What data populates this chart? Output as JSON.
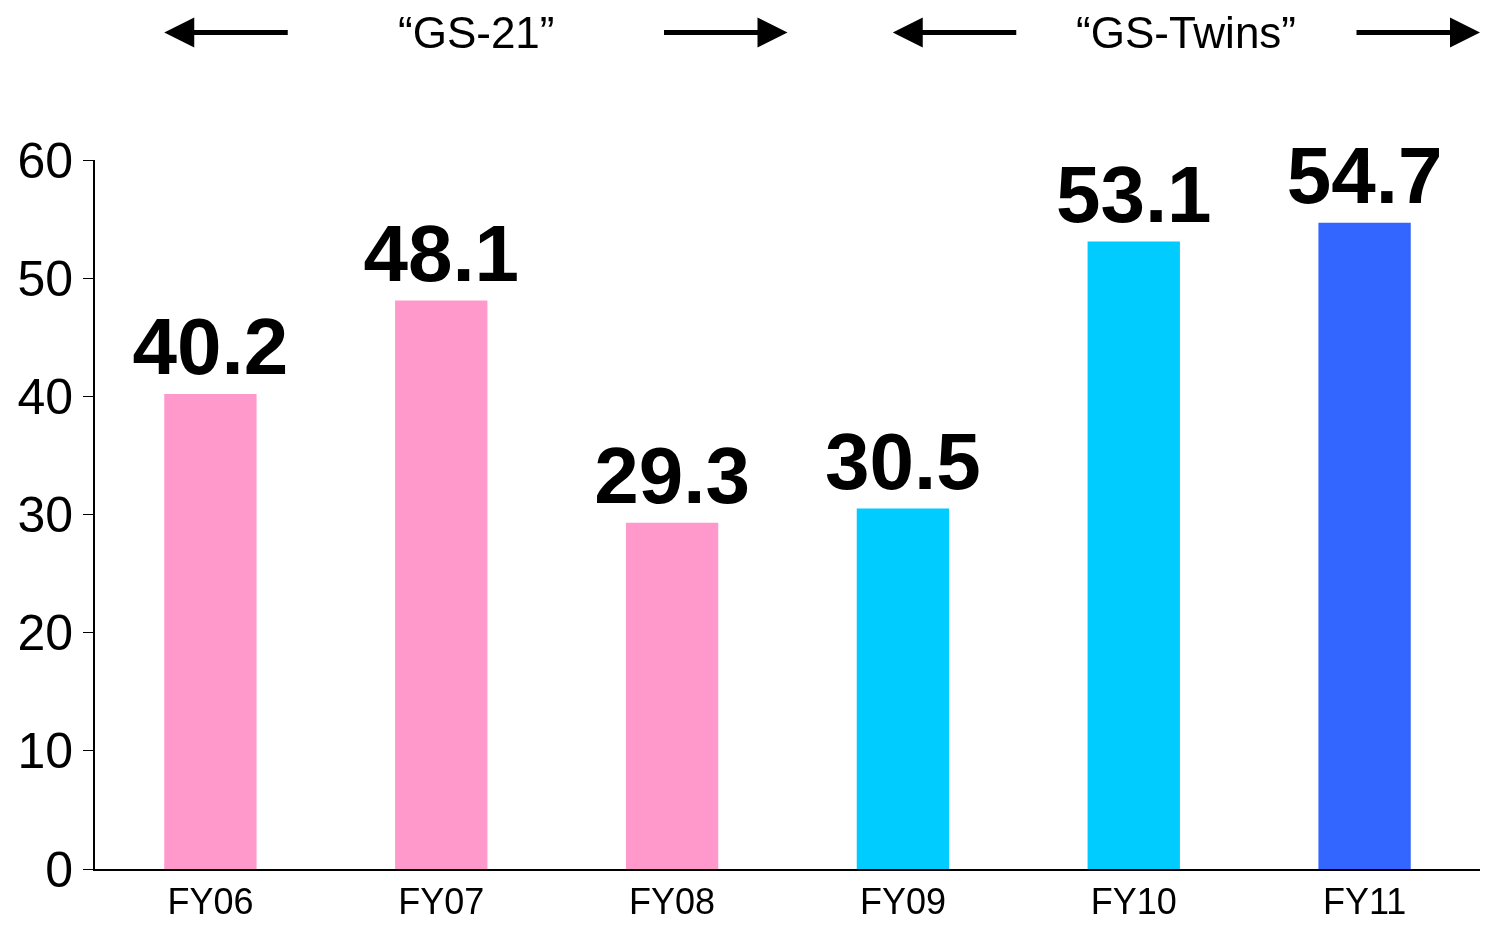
{
  "chart_data": {
    "type": "bar",
    "categories": [
      "FY06",
      "FY07",
      "FY08",
      "FY09",
      "FY10",
      "FY11"
    ],
    "values": [
      40.2,
      48.1,
      29.3,
      30.5,
      53.1,
      54.7
    ],
    "colors": [
      "#ff99cc",
      "#ff99cc",
      "#ff99cc",
      "#00ccff",
      "#00ccff",
      "#3366ff"
    ],
    "ylim": [
      0,
      60
    ],
    "yticks": [
      0,
      10,
      20,
      30,
      40,
      50,
      60
    ],
    "data_labels": true,
    "annotations": [
      "“GS-21”",
      "“GS-Twins”"
    ]
  }
}
